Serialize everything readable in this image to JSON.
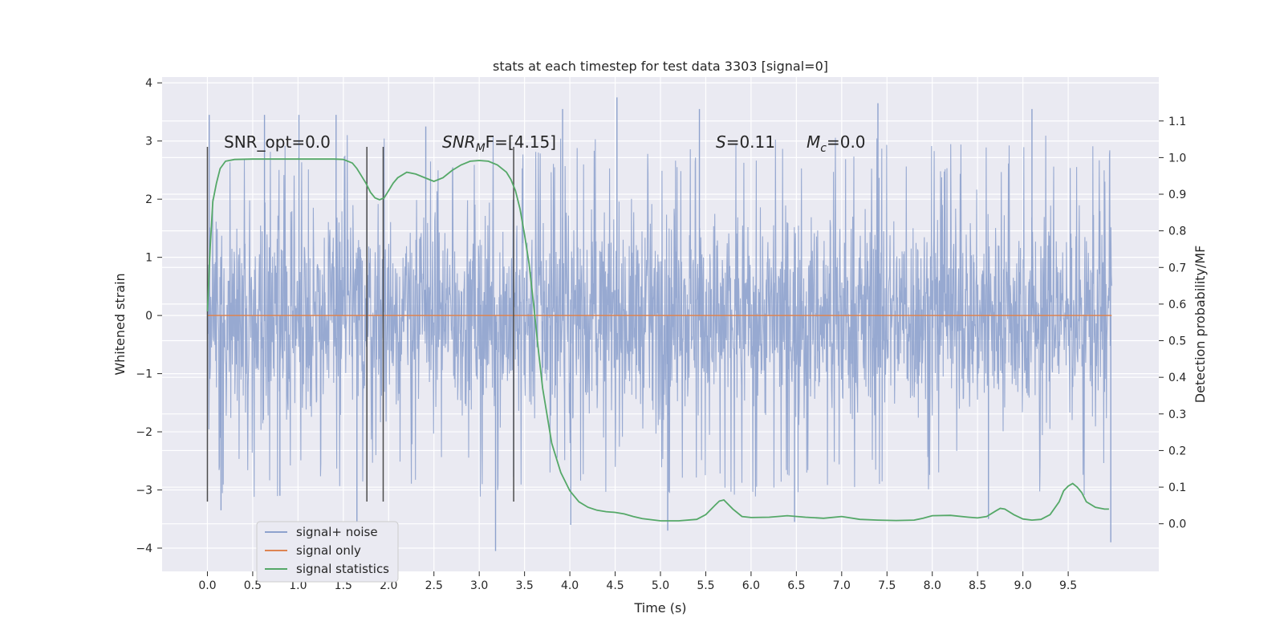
{
  "chart_data": {
    "type": "line",
    "title": "stats at each timestep for test data 3303 [signal=0]",
    "xlabel": "Time (s)",
    "ylabel": "Whitened strain",
    "y2label": "Detection probability/MF",
    "xlim": [
      -0.5,
      10.5
    ],
    "ylim": [
      -4.4,
      4.1
    ],
    "y2lim": [
      -0.13,
      1.22
    ],
    "xticks": [
      "0.0",
      "0.5",
      "1.0",
      "1.5",
      "2.0",
      "2.5",
      "3.0",
      "3.5",
      "4.0",
      "4.5",
      "5.0",
      "5.5",
      "6.0",
      "6.5",
      "7.0",
      "7.5",
      "8.0",
      "8.5",
      "9.0",
      "9.5"
    ],
    "yticks": [
      "4",
      "3",
      "2",
      "1",
      "0",
      "−1",
      "−2",
      "−3",
      "−4"
    ],
    "y2ticks": [
      "1.1",
      "1.0",
      "0.9",
      "0.8",
      "0.7",
      "0.6",
      "0.5",
      "0.4",
      "0.3",
      "0.2",
      "0.1",
      "0.0"
    ],
    "grid": true,
    "legend_position": "lower-left",
    "legend": [
      {
        "label": "signal+ noise",
        "color": "#8ea2cd"
      },
      {
        "label": "signal only",
        "color": "#dd8452"
      },
      {
        "label": "signal statistics",
        "color": "#55a868"
      }
    ],
    "annotations": {
      "snr_opt": "SNR_opt=0.0",
      "snr_mf_sym": "SNR",
      "snr_mf_sub": "M",
      "snr_mf_tail": "F=[4.15]",
      "s_sym": "S",
      "s_val": "=0.11",
      "mc_sym": "M",
      "mc_sub": "c",
      "mc_val": "=0.0"
    },
    "vertical_markers_s": [
      0.0,
      1.76,
      1.94,
      3.38
    ],
    "noise_series": {
      "name": "signal+ noise",
      "x_range": [
        0.0,
        9.98
      ],
      "typical_peak_amplitude": 2.4,
      "max": 3.75,
      "min": -4.05,
      "sample_extremes": [
        {
          "x": 0.02,
          "y": 3.45
        },
        {
          "x": 0.15,
          "y": -3.35
        },
        {
          "x": 0.63,
          "y": 3.45
        },
        {
          "x": 0.8,
          "y": -3.1
        },
        {
          "x": 1.01,
          "y": 3.45
        },
        {
          "x": 1.42,
          "y": 3.45
        },
        {
          "x": 1.65,
          "y": -3.55
        },
        {
          "x": 2.41,
          "y": 3.25
        },
        {
          "x": 3.18,
          "y": -4.05
        },
        {
          "x": 3.92,
          "y": 3.55
        },
        {
          "x": 4.01,
          "y": -3.6
        },
        {
          "x": 4.52,
          "y": 3.75
        },
        {
          "x": 5.08,
          "y": -3.7
        },
        {
          "x": 5.43,
          "y": 3.55
        },
        {
          "x": 6.48,
          "y": -3.55
        },
        {
          "x": 7.4,
          "y": 3.65
        },
        {
          "x": 8.62,
          "y": -3.5
        },
        {
          "x": 9.1,
          "y": 3.55
        },
        {
          "x": 9.97,
          "y": -3.9
        }
      ]
    },
    "signal_only_series": {
      "name": "signal only",
      "x": [
        0.0,
        9.98
      ],
      "y": [
        0.0,
        0.0
      ]
    },
    "statistics_series": {
      "name": "signal statistics",
      "x": [
        0.0,
        0.03,
        0.06,
        0.1,
        0.14,
        0.2,
        0.3,
        0.5,
        0.8,
        1.0,
        1.2,
        1.4,
        1.5,
        1.6,
        1.65,
        1.7,
        1.75,
        1.8,
        1.85,
        1.9,
        1.95,
        2.0,
        2.05,
        2.1,
        2.2,
        2.3,
        2.4,
        2.5,
        2.6,
        2.7,
        2.8,
        2.9,
        3.0,
        3.1,
        3.2,
        3.3,
        3.35,
        3.4,
        3.45,
        3.5,
        3.55,
        3.6,
        3.65,
        3.7,
        3.8,
        3.9,
        4.0,
        4.1,
        4.2,
        4.3,
        4.4,
        4.5,
        4.6,
        4.7,
        4.8,
        5.0,
        5.2,
        5.4,
        5.5,
        5.6,
        5.65,
        5.7,
        5.8,
        5.9,
        6.0,
        6.2,
        6.4,
        6.6,
        6.8,
        7.0,
        7.2,
        7.4,
        7.6,
        7.8,
        7.9,
        8.0,
        8.2,
        8.4,
        8.5,
        8.6,
        8.7,
        8.75,
        8.8,
        8.9,
        9.0,
        9.1,
        9.2,
        9.3,
        9.4,
        9.45,
        9.5,
        9.55,
        9.6,
        9.65,
        9.7,
        9.8,
        9.9,
        9.95
      ],
      "y": [
        0.58,
        0.75,
        0.88,
        0.93,
        0.97,
        0.99,
        0.995,
        0.996,
        0.996,
        0.996,
        0.996,
        0.996,
        0.995,
        0.985,
        0.97,
        0.95,
        0.93,
        0.905,
        0.89,
        0.885,
        0.89,
        0.91,
        0.93,
        0.945,
        0.96,
        0.955,
        0.945,
        0.935,
        0.945,
        0.965,
        0.98,
        0.99,
        0.992,
        0.99,
        0.98,
        0.96,
        0.94,
        0.91,
        0.86,
        0.79,
        0.71,
        0.6,
        0.48,
        0.37,
        0.22,
        0.14,
        0.09,
        0.06,
        0.045,
        0.037,
        0.033,
        0.031,
        0.027,
        0.02,
        0.014,
        0.008,
        0.008,
        0.012,
        0.025,
        0.05,
        0.062,
        0.065,
        0.04,
        0.02,
        0.017,
        0.018,
        0.022,
        0.018,
        0.015,
        0.02,
        0.012,
        0.01,
        0.009,
        0.01,
        0.015,
        0.022,
        0.023,
        0.018,
        0.016,
        0.02,
        0.035,
        0.042,
        0.04,
        0.025,
        0.013,
        0.01,
        0.012,
        0.025,
        0.06,
        0.09,
        0.103,
        0.11,
        0.1,
        0.085,
        0.06,
        0.045,
        0.04,
        0.04
      ]
    }
  }
}
